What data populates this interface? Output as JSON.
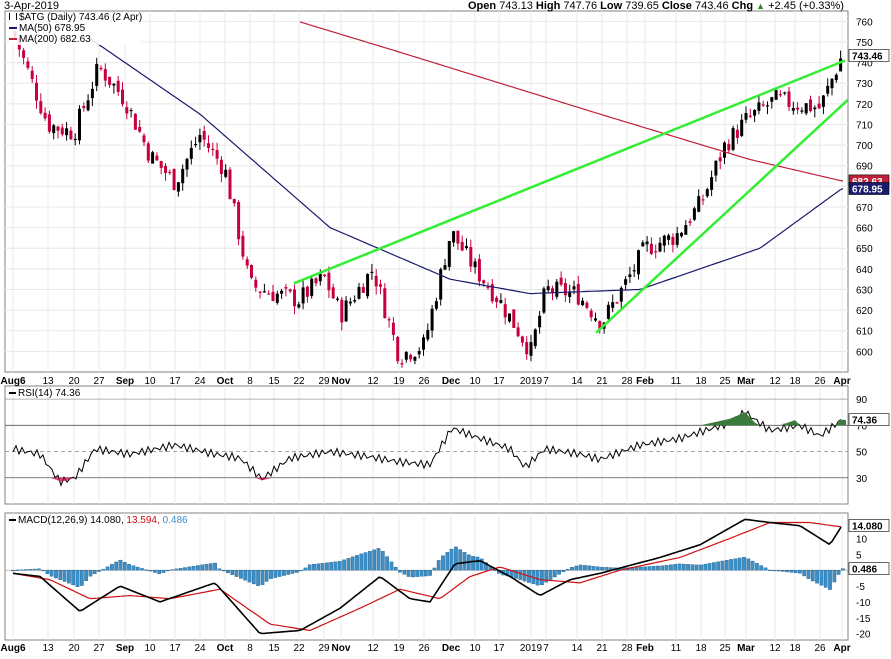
{
  "header": {
    "date": "3-Apr-2019",
    "open_label": "Open",
    "open": "743.13",
    "high_label": "High",
    "high": "747.76",
    "low_label": "Low",
    "low": "739.65",
    "close_label": "Close",
    "close": "743.46",
    "chg_label": "Chg",
    "chg": "+2.45 (+0.33%)",
    "chg_arrow": "▲"
  },
  "colors": {
    "up": "#000000",
    "down": "#c8003c",
    "ma50": "#1a1a6e",
    "ma200": "#c0203a",
    "trendline": "#33ee33",
    "rsi_fill": "#3c7a3c",
    "macd": "#000000",
    "signal": "#d01010",
    "hist": "#3a8fc8"
  },
  "price_panel": {
    "legend_symbol": "$ATG (Daily) 743.46 (2 Apr)",
    "legend_ma50": "MA(50) 678.95",
    "legend_ma200": "MA(200) 682.63",
    "yticks": [
      600,
      610,
      620,
      630,
      640,
      650,
      660,
      670,
      680,
      690,
      700,
      710,
      720,
      730,
      740,
      750,
      760
    ],
    "ylim": [
      590,
      765
    ],
    "last_price_tag": "743.46",
    "ma200_tag": "682.63",
    "ma50_tag": "678.95"
  },
  "rsi_panel": {
    "label": "RSI(14) 74.36",
    "yticks": [
      30,
      50,
      70,
      90
    ],
    "ylim": [
      10,
      100
    ],
    "value_tag": "74.36"
  },
  "macd_panel": {
    "label_name": "MACD(12,26,9)",
    "label_macd": "14.080,",
    "label_signal": "13.594,",
    "label_hist": "0.486",
    "yticks": [
      10,
      5,
      0,
      -5,
      -10,
      -15,
      -20
    ],
    "ylim": [
      -22,
      18
    ],
    "macd_tag": "14.080",
    "hist_tag": "0.486"
  },
  "x_axis_labels": [
    "Aug6",
    "13",
    "20",
    "27",
    "Sep",
    "10",
    "17",
    "24",
    "Oct",
    "8",
    "15",
    "22",
    "29",
    "Nov",
    "12",
    "19",
    "26",
    "Dec",
    "10",
    "17",
    "2019",
    "7",
    "14",
    "21",
    "28",
    "Feb",
    "11",
    "18",
    "25",
    "Mar",
    "12",
    "18",
    "26",
    "Apr"
  ],
  "chart_data": {
    "type": "candlestick",
    "title": "$ATG (Daily) 743.46 (2 Apr)",
    "date_range": [
      "2018-08-06",
      "2019-04-02"
    ],
    "price_ylim": [
      590,
      765
    ],
    "close_points": [
      {
        "x": "Aug6",
        "y": 755
      },
      {
        "x": "13",
        "y": 710
      },
      {
        "x": "20",
        "y": 706
      },
      {
        "x": "27",
        "y": 738
      },
      {
        "x": "Sep",
        "y": 722
      },
      {
        "x": "10",
        "y": 695
      },
      {
        "x": "17",
        "y": 682
      },
      {
        "x": "24",
        "y": 705
      },
      {
        "x": "Oct",
        "y": 688
      },
      {
        "x": "8",
        "y": 632
      },
      {
        "x": "15",
        "y": 628
      },
      {
        "x": "22",
        "y": 625
      },
      {
        "x": "29",
        "y": 636
      },
      {
        "x": "Nov",
        "y": 618
      },
      {
        "x": "12",
        "y": 640
      },
      {
        "x": "19",
        "y": 598
      },
      {
        "x": "26",
        "y": 603
      },
      {
        "x": "Dec",
        "y": 658
      },
      {
        "x": "10",
        "y": 640
      },
      {
        "x": "17",
        "y": 625
      },
      {
        "x": "2019",
        "y": 600
      },
      {
        "x": "7",
        "y": 630
      },
      {
        "x": "14",
        "y": 628
      },
      {
        "x": "21",
        "y": 614
      },
      {
        "x": "28",
        "y": 634
      },
      {
        "x": "Feb",
        "y": 650
      },
      {
        "x": "11",
        "y": 656
      },
      {
        "x": "18",
        "y": 672
      },
      {
        "x": "25",
        "y": 700
      },
      {
        "x": "Mar",
        "y": 712
      },
      {
        "x": "12",
        "y": 722
      },
      {
        "x": "18",
        "y": 720
      },
      {
        "x": "26",
        "y": 718
      },
      {
        "x": "Apr",
        "y": 743.46
      }
    ],
    "ma50_last": 678.95,
    "ma200_last": 682.63,
    "rsi_last": 74.36,
    "macd_last": 14.08,
    "signal_last": 13.594,
    "hist_last": 0.486
  }
}
